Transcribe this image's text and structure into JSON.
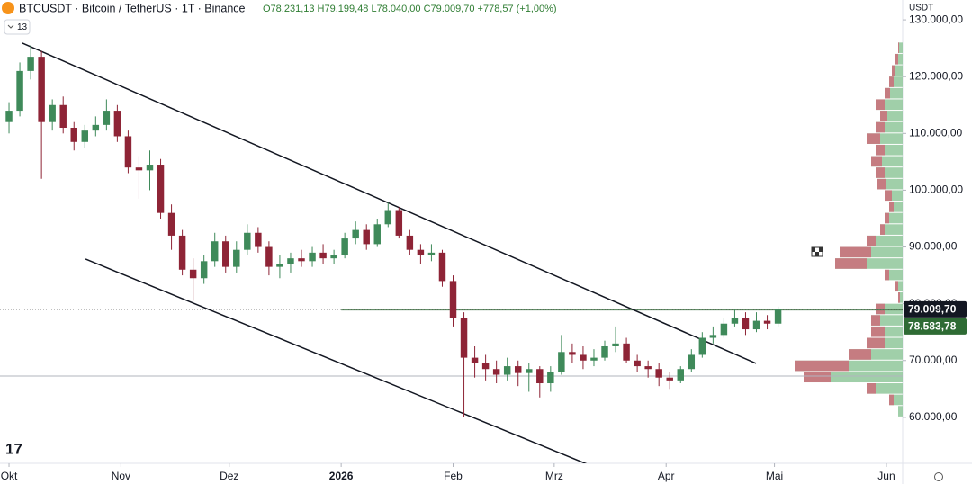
{
  "header": {
    "symbol": "BTCUSDT · Bitcoin / TetherUS · 1T · Binance",
    "ohlc": "O78.231,13 H79.199,48 L78.040,00 C79.009,70 +778,57 (+1,00%)",
    "indicators_count": "13"
  },
  "chart_data": {
    "type": "candlestick",
    "currency": "USDT",
    "x": [
      0,
      3,
      6,
      9,
      12,
      15,
      18,
      21,
      24,
      27,
      30,
      33,
      36,
      39,
      42,
      45,
      48,
      51,
      54,
      57,
      60,
      63,
      66,
      69,
      72,
      75,
      78,
      81,
      84,
      87,
      90,
      93,
      96,
      99,
      102,
      105,
      108,
      111,
      114,
      117,
      120,
      123,
      126,
      129,
      132,
      135,
      138,
      141,
      144,
      147,
      150,
      153,
      156,
      159,
      162,
      165,
      168,
      171,
      174,
      177,
      180,
      183,
      186,
      189,
      192,
      195,
      198,
      201,
      204,
      207,
      210,
      213
    ],
    "open": [
      112000,
      114000,
      121000,
      123500,
      112000,
      115000,
      111000,
      108500,
      110500,
      111500,
      114000,
      109500,
      104000,
      103500,
      104500,
      96000,
      92000,
      86000,
      84500,
      87500,
      91000,
      86500,
      89500,
      92500,
      90000,
      86500,
      87000,
      88000,
      87500,
      89000,
      88000,
      88500,
      91500,
      93000,
      90500,
      94000,
      96500,
      92000,
      89500,
      88500,
      89000,
      84000,
      77500,
      70500,
      69500,
      68500,
      67500,
      69000,
      67800,
      68500,
      66000,
      68000,
      71500,
      71000,
      70000,
      70500,
      72500,
      73000,
      70000,
      69000,
      68500,
      67000,
      66500,
      68500,
      71000,
      74000,
      74500,
      76500,
      77500,
      75500,
      77000,
      76500
    ],
    "high": [
      115500,
      122500,
      125500,
      124500,
      116000,
      116500,
      112000,
      111500,
      113000,
      116000,
      115000,
      110500,
      106000,
      107000,
      105500,
      97500,
      93000,
      88000,
      88500,
      92500,
      92000,
      91000,
      94000,
      93500,
      91000,
      88500,
      89000,
      89500,
      90000,
      90500,
      89500,
      92500,
      94500,
      94000,
      95000,
      97800,
      97000,
      93000,
      90500,
      90500,
      89500,
      85000,
      78500,
      72500,
      71000,
      70000,
      70500,
      70000,
      69500,
      69000,
      69000,
      74500,
      73000,
      72500,
      72000,
      73500,
      76000,
      74000,
      71000,
      70000,
      69500,
      68000,
      69000,
      72000,
      75000,
      76000,
      77500,
      79000,
      78500,
      78500,
      78000,
      79500
    ],
    "low": [
      110000,
      113000,
      119500,
      102000,
      110500,
      110000,
      107000,
      107500,
      109500,
      110500,
      108500,
      103000,
      98500,
      100000,
      95000,
      89500,
      85000,
      80500,
      83500,
      86500,
      85500,
      85500,
      88500,
      89000,
      85000,
      84500,
      85500,
      86500,
      86500,
      87000,
      87000,
      88000,
      90500,
      89500,
      90000,
      93500,
      91500,
      88500,
      87000,
      87500,
      83000,
      76000,
      60000,
      67000,
      66500,
      66000,
      66500,
      65500,
      64500,
      63500,
      64500,
      67500,
      69500,
      68500,
      69000,
      70000,
      71500,
      69500,
      68000,
      67000,
      65500,
      65000,
      66000,
      68000,
      70500,
      73000,
      74000,
      76000,
      74500,
      75000,
      75500,
      76000
    ],
    "close": [
      114000,
      121000,
      123500,
      112000,
      115000,
      111000,
      108500,
      110500,
      111500,
      114000,
      109500,
      104000,
      103500,
      104500,
      96000,
      92000,
      86000,
      84500,
      87500,
      91000,
      86500,
      89500,
      92500,
      90000,
      86500,
      87000,
      88000,
      87500,
      89000,
      88000,
      88500,
      91500,
      93000,
      90500,
      94000,
      96500,
      92000,
      89500,
      88500,
      89000,
      84000,
      77500,
      70500,
      69500,
      68500,
      67500,
      69000,
      67800,
      68500,
      66000,
      68000,
      71500,
      71000,
      70000,
      70500,
      72500,
      73000,
      70000,
      69000,
      68500,
      67000,
      66500,
      68500,
      71000,
      74000,
      74500,
      76500,
      77500,
      75500,
      77000,
      76500,
      79009.7
    ],
    "up_color": "#3f8a5a",
    "down_color": "#8e2436",
    "xlim": [
      -2.5,
      247.5
    ],
    "xticks": [
      {
        "value": 0,
        "label": "Okt"
      },
      {
        "value": 31,
        "label": "Nov"
      },
      {
        "value": 61,
        "label": "Dez"
      },
      {
        "value": 92,
        "label": "2026"
      },
      {
        "value": 123,
        "label": "Feb"
      },
      {
        "value": 151,
        "label": "Mrz"
      },
      {
        "value": 182,
        "label": "Apr"
      },
      {
        "value": 212,
        "label": "Mai"
      },
      {
        "value": 243,
        "label": "Jun"
      }
    ],
    "ylim": [
      51900,
      133500
    ],
    "yticks": [
      {
        "value": 60000,
        "label": "60.000,00"
      },
      {
        "value": 70000,
        "label": "70.000,00"
      },
      {
        "value": 80000,
        "label": "80.000,00"
      },
      {
        "value": 90000,
        "label": "90.000,00"
      },
      {
        "value": 100000,
        "label": "100.000,00"
      },
      {
        "value": 110000,
        "label": "110.000,00"
      },
      {
        "value": 120000,
        "label": "120.000,00"
      },
      {
        "value": 130000,
        "label": "130.000,00"
      }
    ],
    "price_tags": [
      {
        "value": 79009.7,
        "label": "79.009,70",
        "color": "#131722"
      },
      {
        "value": 78583.78,
        "label": "78.583,78",
        "color": "#2e6b34"
      }
    ],
    "trendlines": [
      {
        "x": [
          3.7,
          206.9
        ],
        "y": [
          125900,
          69500
        ]
      },
      {
        "x": [
          21.2,
          160.8
        ],
        "y": [
          87870,
          51580
        ]
      }
    ],
    "horizontal_lines": [
      {
        "x_start": -2.5,
        "value": 67270,
        "color": "#b2b5be"
      },
      {
        "x_start": 92,
        "value": 78900,
        "color": "#4d7d52"
      }
    ],
    "volume_profile": {
      "prices": [
        61000,
        63000,
        65000,
        67000,
        69000,
        71000,
        73000,
        75000,
        77000,
        79000,
        81000,
        83000,
        85000,
        87000,
        89000,
        91000,
        93000,
        95000,
        97000,
        99000,
        101000,
        103000,
        105000,
        107000,
        109000,
        111000,
        113000,
        115000,
        117000,
        119000,
        121000,
        123000,
        125000
      ],
      "total": [
        5,
        15,
        40,
        110,
        120,
        60,
        40,
        35,
        35,
        30,
        5,
        8,
        20,
        75,
        70,
        40,
        25,
        20,
        15,
        20,
        28,
        30,
        35,
        30,
        40,
        30,
        25,
        30,
        20,
        15,
        12,
        8,
        5
      ],
      "sell": [
        0,
        5,
        10,
        30,
        60,
        25,
        20,
        15,
        10,
        10,
        2,
        3,
        5,
        35,
        35,
        10,
        5,
        5,
        5,
        8,
        10,
        10,
        12,
        10,
        15,
        10,
        8,
        10,
        6,
        5,
        4,
        3,
        1
      ],
      "buy_color": "#8fc79a",
      "sell_color": "#c9727c"
    }
  }
}
